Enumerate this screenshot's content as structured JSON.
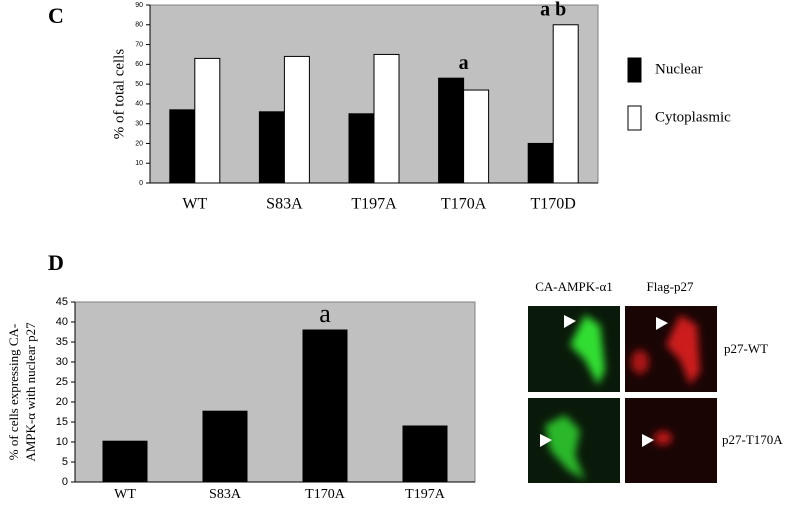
{
  "panel_labels": [
    "C",
    "D"
  ],
  "chart_data": [
    {
      "type": "bar",
      "ylabel": [
        "% of total cells"
      ],
      "categories": [
        "WT",
        "S83A",
        "T197A",
        "T170A",
        "T170D"
      ],
      "series": [
        {
          "name": "Nuclear",
          "color": "#000000",
          "values": [
            37,
            36,
            35,
            53,
            20
          ]
        },
        {
          "name": "Cytoplasmic",
          "color": "#ffffff",
          "values": [
            63,
            64,
            65,
            47,
            80
          ]
        }
      ],
      "ylim": [
        0,
        90
      ],
      "yticks": [
        0,
        10,
        20,
        30,
        40,
        50,
        60,
        70,
        80,
        90
      ],
      "grid": false,
      "legend": "right",
      "annotations": [
        {
          "text": "a",
          "category": "T170A"
        },
        {
          "text": "a b",
          "category": "T170D"
        }
      ]
    },
    {
      "type": "bar",
      "ylabel": [
        "% of cells expressing CA-",
        "AMPK-α with nuclear p27"
      ],
      "categories": [
        "WT",
        "S83A",
        "T170A",
        "T197A"
      ],
      "series": [
        {
          "color": "#000000",
          "values": [
            10.2,
            17.7,
            38,
            14
          ]
        }
      ],
      "ylim": [
        0,
        45
      ],
      "yticks": [
        0,
        5,
        10,
        15,
        20,
        25,
        30,
        35,
        40,
        45
      ],
      "grid": false,
      "annotations": [
        {
          "text": "a",
          "category": "T170A"
        }
      ]
    }
  ],
  "image_panel": {
    "column_labels": [
      "CA-AMPK-α1",
      "Flag-p27"
    ],
    "row_labels": [
      "p27-WT",
      "p27-T170A"
    ]
  }
}
